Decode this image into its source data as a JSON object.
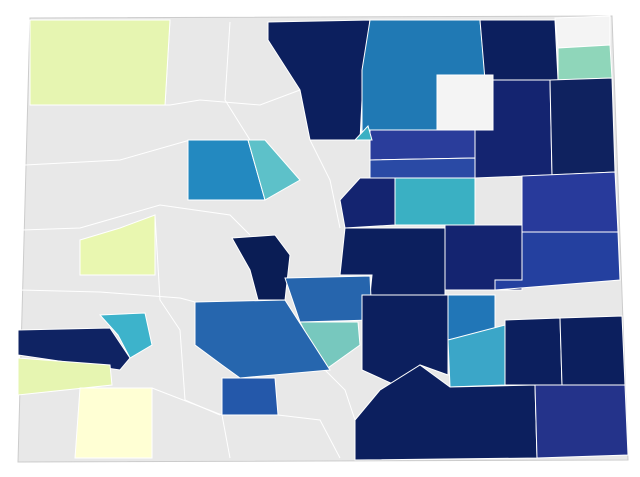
{
  "map": {
    "regions": [
      {
        "color": "#e6f5b1"
      },
      {
        "color": "#0c1f5e"
      },
      {
        "color": "#2079b4"
      },
      {
        "color": "#0c1f5e"
      },
      {
        "color": "#f4f4f4"
      },
      {
        "color": "#8fd6ba"
      },
      {
        "color": "#f4f4f4"
      },
      {
        "color": "#142470"
      },
      {
        "color": "#0f225f"
      },
      {
        "color": "#2389c0"
      },
      {
        "color": "#5dc1c9"
      },
      {
        "color": "#2a3d9b"
      },
      {
        "color": "#2a4aa5"
      },
      {
        "color": "#142470"
      },
      {
        "color": "#3ab0c3"
      },
      {
        "color": "#142470"
      },
      {
        "color": "#283a9b"
      },
      {
        "color": "#24409f"
      },
      {
        "color": "#0c1f5e"
      },
      {
        "color": "#0a1d55"
      },
      {
        "color": "#2665ad"
      },
      {
        "color": "#77c8be"
      },
      {
        "color": "#0c1f5e"
      },
      {
        "color": "#2176b7"
      },
      {
        "color": "#3ba6c8"
      },
      {
        "color": "#0c1f5e"
      },
      {
        "color": "#0c1f5e"
      },
      {
        "color": "#2666ae"
      },
      {
        "color": "#2458aa"
      },
      {
        "color": "#0c1f5e"
      },
      {
        "color": "#24338a"
      },
      {
        "color": "#e9f7b0"
      },
      {
        "color": "#3db3cb"
      },
      {
        "color": "#0f2363"
      },
      {
        "color": "#e6f5b1"
      },
      {
        "color": "#ffffd4"
      },
      {
        "color": "#3ab0c3"
      }
    ]
  }
}
